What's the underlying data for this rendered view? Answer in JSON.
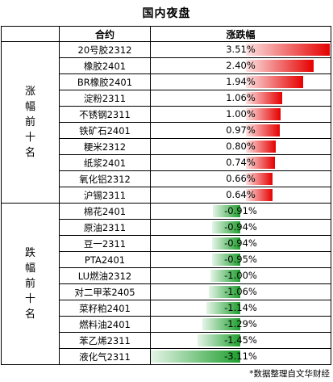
{
  "title": "国内夜盘",
  "header": {
    "contract": "合约",
    "change": "涨跌幅"
  },
  "groups": {
    "up": {
      "label": [
        "涨",
        "幅",
        "前",
        "十",
        "名"
      ]
    },
    "down": {
      "label": [
        "跌",
        "幅",
        "前",
        "十",
        "名"
      ]
    }
  },
  "up_rows": [
    {
      "name": "20号胶2312",
      "change": "3.51%",
      "value": 3.51
    },
    {
      "name": "橡胶2401",
      "change": "2.40%",
      "value": 2.4
    },
    {
      "name": "BR橡胶2401",
      "change": "1.94%",
      "value": 1.94
    },
    {
      "name": "淀粉2311",
      "change": "1.06%",
      "value": 1.06
    },
    {
      "name": "不锈钢2311",
      "change": "1.00%",
      "value": 1.0
    },
    {
      "name": "铁矿石2401",
      "change": "0.97%",
      "value": 0.97
    },
    {
      "name": "粳米2312",
      "change": "0.80%",
      "value": 0.8
    },
    {
      "name": "纸浆2401",
      "change": "0.74%",
      "value": 0.74
    },
    {
      "name": "氧化铝2312",
      "change": "0.66%",
      "value": 0.66
    },
    {
      "name": "沪锡2311",
      "change": "0.64%",
      "value": 0.64
    }
  ],
  "down_rows": [
    {
      "name": "棉花2401",
      "change": "-0.91%",
      "value": -0.91
    },
    {
      "name": "原油2311",
      "change": "-0.94%",
      "value": -0.94
    },
    {
      "name": "豆一2311",
      "change": "-0.94%",
      "value": -0.94
    },
    {
      "name": "PTA2401",
      "change": "-0.95%",
      "value": -0.95
    },
    {
      "name": "LU燃油2312",
      "change": "-1.00%",
      "value": -1.0
    },
    {
      "name": "对二甲苯2405",
      "change": "-1.06%",
      "value": -1.06
    },
    {
      "name": "菜籽粕2401",
      "change": "-1.14%",
      "value": -1.14
    },
    {
      "name": "燃料油2401",
      "change": "-1.29%",
      "value": -1.29
    },
    {
      "name": "苯乙烯2311",
      "change": "-1.45%",
      "value": -1.45
    },
    {
      "name": "液化气2311",
      "change": "-3.11%",
      "value": -3.11
    }
  ],
  "colors": {
    "up": "#e60000",
    "down": "#1f9e2e"
  },
  "footnote": "*数据整理自文华财经"
}
